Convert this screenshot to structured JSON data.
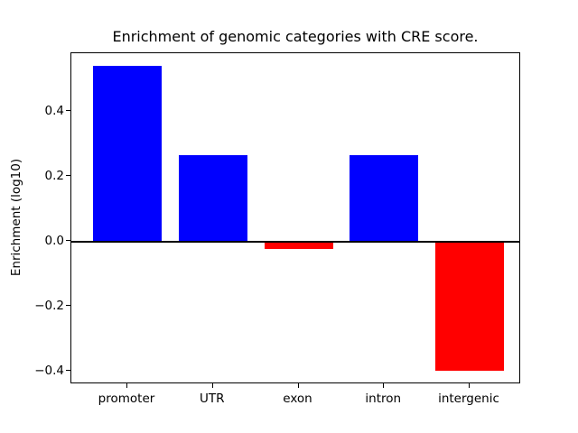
{
  "chart_data": {
    "type": "bar",
    "title": "Enrichment of genomic categories with CRE score.",
    "xlabel": "",
    "ylabel": "Enrichment (log10)",
    "categories": [
      "promoter",
      "UTR",
      "exon",
      "intron",
      "intergenic"
    ],
    "values": [
      0.54,
      0.265,
      -0.022,
      0.265,
      -0.397
    ],
    "yticks": [
      0.4,
      0.2,
      0.0,
      -0.2,
      -0.4
    ],
    "ytick_labels": [
      "0.4",
      "0.2",
      "0.0",
      "−0.2",
      "−0.4"
    ],
    "ylim": [
      -0.44,
      0.58
    ],
    "grid": false,
    "legend": null,
    "zero_baseline": true,
    "colors": {
      "positive_bar": "#0000ff",
      "negative_bar": "#ff0000",
      "axis": "#000000",
      "background": "#ffffff"
    }
  }
}
